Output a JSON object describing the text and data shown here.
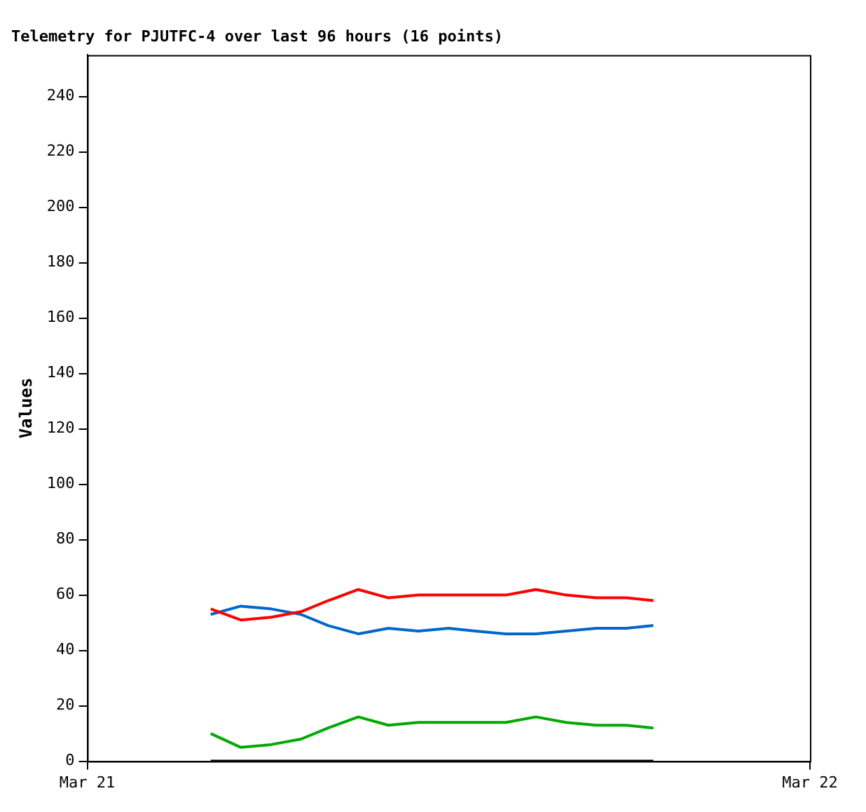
{
  "chart_data": {
    "type": "line",
    "title": "Telemetry for PJUTFC-4 over last 96 hours (16 points)",
    "ylabel": "Values",
    "x": [
      "--03-21T04:06",
      "--03-21T05:06",
      "--03-21T06:06",
      "--03-21T07:06",
      "--03-21T08:00",
      "--03-21T09:00",
      "--03-21T10:00",
      "--03-21T11:00",
      "--03-21T12:00",
      "--03-21T12:54",
      "--03-21T13:54",
      "--03-21T14:54",
      "--03-21T15:54",
      "--03-21T16:54",
      "--03-21T17:54",
      "--03-21T18:48"
    ],
    "xlim": [
      "--03-21",
      "--03-22"
    ],
    "xticks": [
      {
        "value": "--03-21",
        "label": "Mar 21"
      },
      {
        "value": "--03-22",
        "label": "Mar 22"
      }
    ],
    "ylim": [
      0,
      255
    ],
    "yticks": [
      0,
      20,
      40,
      60,
      80,
      100,
      120,
      140,
      160,
      180,
      200,
      220,
      240
    ],
    "series": [
      {
        "color": "#ff0000",
        "values": [
          55,
          51,
          52,
          54,
          58,
          62,
          59,
          60,
          60,
          60,
          60,
          62,
          60,
          59,
          59,
          58
        ]
      },
      {
        "color": "#0066cc",
        "values": [
          53,
          56,
          55,
          53,
          49,
          46,
          48,
          47,
          48,
          47,
          46,
          46,
          47,
          48,
          48,
          49
        ]
      },
      {
        "color": "#00aa00",
        "values": [
          10,
          5,
          6,
          8,
          12,
          16,
          13,
          14,
          14,
          14,
          14,
          16,
          14,
          13,
          13,
          12
        ]
      },
      {
        "color": "#000000",
        "values": [
          0,
          0,
          0,
          0,
          0,
          0,
          0,
          0,
          0,
          0,
          0,
          0,
          0,
          0,
          0,
          0
        ]
      }
    ],
    "grid": false,
    "legend": false,
    "marker": "none",
    "line_style": "solid"
  }
}
